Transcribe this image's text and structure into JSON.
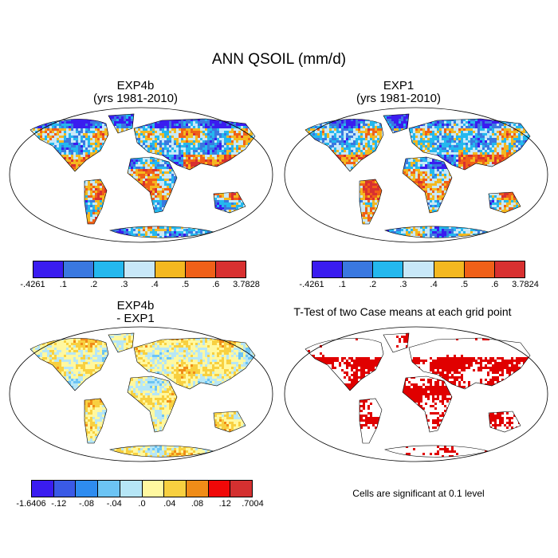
{
  "title": "ANN QSOIL (mm/d)",
  "panels": {
    "p1": {
      "title_line1": "EXP4b",
      "title_line2": "(yrs 1981-2010)"
    },
    "p2": {
      "title_line1": "EXP1",
      "title_line2": "(yrs 1981-2010)"
    },
    "p3": {
      "title_line1": "EXP4b",
      "title_line2": "- EXP1"
    },
    "p4": {
      "title": "T-Test of two Case means at each grid point"
    }
  },
  "colorbars": {
    "cb1": {
      "colors": [
        "#3a1cf0",
        "#3a78e0",
        "#24b8ee",
        "#c8e8f8",
        "#f4b820",
        "#f06018",
        "#d83030"
      ],
      "labels": [
        "-.4261",
        ".1",
        ".2",
        ".3",
        ".4",
        ".5",
        ".6",
        "3.7828"
      ]
    },
    "cb2": {
      "colors": [
        "#3a1cf0",
        "#3a78e0",
        "#24b8ee",
        "#c8e8f8",
        "#f4b820",
        "#f06018",
        "#d83030"
      ],
      "labels": [
        "-.4261",
        ".1",
        ".2",
        ".3",
        ".4",
        ".5",
        ".6",
        "3.7824"
      ]
    },
    "cb3": {
      "colors": [
        "#3a1cf0",
        "#3a5ae6",
        "#2e8cf0",
        "#6cc4f4",
        "#b6e6f6",
        "#fff8a0",
        "#f8d040",
        "#f08c18",
        "#f00808",
        "#d43030"
      ],
      "labels": [
        "-1.6406",
        "-.12",
        "-.08",
        "-.04",
        ".0",
        ".04",
        ".08",
        ".12",
        ".7004"
      ]
    }
  },
  "note": "Cells are significant at 0.1 level"
}
